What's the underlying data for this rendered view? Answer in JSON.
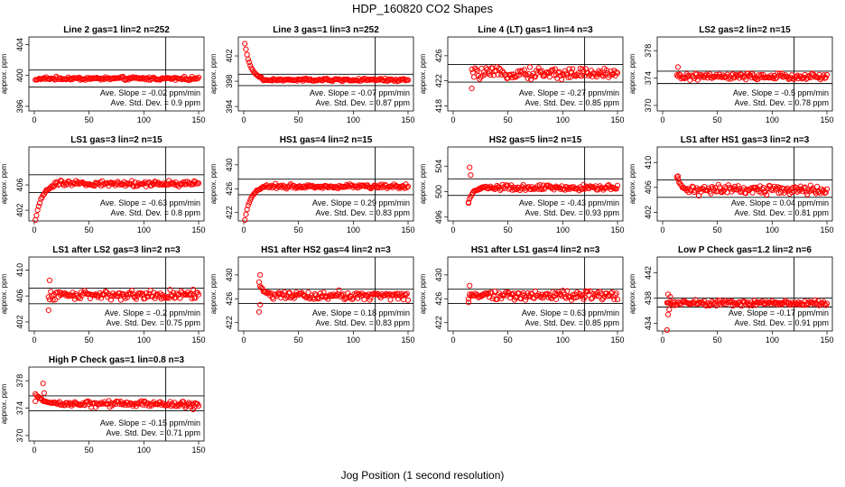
{
  "figure": {
    "title": "HDP_160820  CO2 Shapes",
    "xlabel": "Jog Position (1 second resolution)",
    "colors": {
      "points": "#ff0000",
      "lines": "#000000"
    }
  },
  "chart_data": [
    {
      "type": "scatter",
      "title": "Line 2 gas=1 lin=2 n=252",
      "ylabel": "approx. ppm",
      "xlim": [
        0,
        150
      ],
      "ylim": [
        395.4,
        405.0
      ],
      "yticks": [
        396,
        400,
        404
      ],
      "xticks": [
        0,
        50,
        100,
        150
      ],
      "hlines": [
        400.7,
        398.5
      ],
      "vline": 120,
      "x_start": 1,
      "n": 150,
      "base": 399.6,
      "noise": 0.15,
      "settle": {
        "from": 399.4,
        "len": 8
      },
      "outliers": [],
      "slope_text": "Ave. Slope =  -0.02  ppm/min",
      "sd_text": "Ave. Std. Dev. =  0.9  ppm"
    },
    {
      "type": "scatter",
      "title": "Line 3 gas=1 lin=3 n=252",
      "ylabel": "approx. ppm",
      "xlim": [
        0,
        150
      ],
      "ylim": [
        393.3,
        405.0
      ],
      "yticks": [
        394,
        398,
        402
      ],
      "xticks": [
        0,
        50,
        100,
        150
      ],
      "hlines": [
        399.1,
        397.3
      ],
      "vline": 120,
      "x_start": 1,
      "n": 150,
      "base": 398.2,
      "noise": 0.15,
      "settle": {
        "from": 404.0,
        "len": 16
      },
      "outliers": [],
      "slope_text": "Ave. Slope =  -0.07  ppm/min",
      "sd_text": "Ave. Std. Dev. =  0.87  ppm"
    },
    {
      "type": "scatter",
      "title": "Line 4 (LT) gas=1 lin=4 n=3",
      "ylabel": "approx. ppm",
      "xlim": [
        0,
        150
      ],
      "ylim": [
        417.2,
        429.0
      ],
      "yticks": [
        418,
        422,
        426
      ],
      "xticks": [
        0,
        50,
        100,
        150
      ],
      "hlines": [
        424.6,
        421.8
      ],
      "vline": 120,
      "x_start": 17,
      "n": 134,
      "base": 423.2,
      "noise": 0.6,
      "settle": null,
      "outliers": [
        [
          17,
          420.8
        ]
      ],
      "slope_text": "Ave. Slope =  -0.27  ppm/min",
      "sd_text": "Ave. Std. Dev. =  0.85  ppm"
    },
    {
      "type": "scatter",
      "title": "LS2 gas=2 lin=2 n=15",
      "ylabel": "approx. ppm",
      "xlim": [
        0,
        150
      ],
      "ylim": [
        369.2,
        380.0
      ],
      "yticks": [
        370,
        374,
        378
      ],
      "xticks": [
        0,
        50,
        100,
        150
      ],
      "hlines": [
        375.0,
        373.2
      ],
      "vline": 120,
      "x_start": 13,
      "n": 138,
      "base": 374.2,
      "noise": 0.3,
      "settle": null,
      "outliers": [
        [
          14,
          375.6
        ]
      ],
      "slope_text": "Ave. Slope =  -0.5  ppm/min",
      "sd_text": "Ave. Std. Dev. =  0.78  ppm"
    },
    {
      "type": "scatter",
      "title": "LS1 gas=3 lin=2 n=15",
      "ylabel": "approx. ppm",
      "xlim": [
        0,
        150
      ],
      "ylim": [
        400.3,
        412.0
      ],
      "yticks": [
        402,
        406
      ],
      "xticks": [
        0,
        50,
        100,
        150
      ],
      "hlines": [
        407.6,
        404.8
      ],
      "vline": 120,
      "x_start": 1,
      "n": 150,
      "base": 406.2,
      "noise": 0.3,
      "settle": {
        "from": 400.3,
        "len": 18
      },
      "outliers": [],
      "slope_text": "Ave. Slope =  -0.63  ppm/min",
      "sd_text": "Ave. Std. Dev. =  0.8  ppm"
    },
    {
      "type": "scatter",
      "title": "HS1 gas=4 lin=2 n=15",
      "ylabel": "approx. ppm",
      "xlim": [
        0,
        150
      ],
      "ylim": [
        420.6,
        433.0
      ],
      "yticks": [
        422,
        426,
        430
      ],
      "xticks": [
        0,
        50,
        100,
        150
      ],
      "hlines": [
        427.6,
        425.0
      ],
      "vline": 120,
      "x_start": 1,
      "n": 150,
      "base": 426.4,
      "noise": 0.25,
      "settle": {
        "from": 420.6,
        "len": 16
      },
      "outliers": [],
      "slope_text": "Ave. Slope =  0.29  ppm/min",
      "sd_text": "Ave. Std. Dev. =  0.83  ppm"
    },
    {
      "type": "scatter",
      "title": "HS2 gas=5 lin=2 n=15",
      "ylabel": "approx. ppm",
      "xlim": [
        0,
        150
      ],
      "ylim": [
        495.4,
        507.0
      ],
      "yticks": [
        496,
        500,
        504
      ],
      "xticks": [
        0,
        50,
        100,
        150
      ],
      "hlines": [
        502.0,
        499.4
      ],
      "vline": 120,
      "x_start": 14,
      "n": 137,
      "base": 500.6,
      "noise": 0.3,
      "settle": {
        "from": 498.4,
        "len": 12
      },
      "outliers": [
        [
          15,
          503.8
        ],
        [
          16,
          502.6
        ],
        [
          14,
          498.2
        ]
      ],
      "slope_text": "Ave. Slope =  -0.43  ppm/min",
      "sd_text": "Ave. Std. Dev. =  0.93  ppm"
    },
    {
      "type": "scatter",
      "title": "LS1 after HS1 gas=3 lin=2 n=3",
      "ylabel": "approx. ppm",
      "xlim": [
        0,
        150
      ],
      "ylim": [
        400.6,
        412.5
      ],
      "yticks": [
        402,
        406,
        410
      ],
      "xticks": [
        0,
        50,
        100,
        150
      ],
      "hlines": [
        407.2,
        404.4
      ],
      "vline": 120,
      "x_start": 13,
      "n": 138,
      "base": 405.6,
      "noise": 0.55,
      "settle": {
        "from": 407.6,
        "len": 10
      },
      "outliers": [
        [
          14,
          407.8
        ]
      ],
      "slope_text": "Ave. Slope =  0.04  ppm/min",
      "sd_text": "Ave. Std. Dev. =  0.81  ppm"
    },
    {
      "type": "scatter",
      "title": "LS1 after LS2 gas=3 lin=2 n=3",
      "ylabel": "approx. ppm",
      "xlim": [
        0,
        150
      ],
      "ylim": [
        400.6,
        412.0
      ],
      "yticks": [
        402,
        406,
        410
      ],
      "xticks": [
        0,
        50,
        100,
        150
      ],
      "hlines": [
        407.2,
        404.8
      ],
      "vline": 120,
      "x_start": 13,
      "n": 138,
      "base": 406.2,
      "noise": 0.5,
      "settle": null,
      "outliers": [
        [
          14,
          408.4
        ],
        [
          13,
          403.8
        ]
      ],
      "slope_text": "Ave. Slope =  -0.2  ppm/min",
      "sd_text": "Ave. Std. Dev. =  0.75  ppm"
    },
    {
      "type": "scatter",
      "title": "HS1 after HS2 gas=4 lin=2 n=3",
      "ylabel": "approx. ppm",
      "xlim": [
        0,
        150
      ],
      "ylim": [
        420.6,
        433.0
      ],
      "yticks": [
        422,
        426,
        430
      ],
      "xticks": [
        0,
        50,
        100,
        150
      ],
      "hlines": [
        427.6,
        425.2
      ],
      "vline": 120,
      "x_start": 14,
      "n": 137,
      "base": 426.6,
      "noise": 0.5,
      "settle": {
        "from": 428.8,
        "len": 12
      },
      "outliers": [
        [
          15,
          430.0
        ],
        [
          14,
          423.8
        ],
        [
          15,
          425.0
        ]
      ],
      "slope_text": "Ave. Slope =  0.18  ppm/min",
      "sd_text": "Ave. Std. Dev. =  0.83  ppm"
    },
    {
      "type": "scatter",
      "title": "HS1 after LS1 gas=4 lin=2 n=3",
      "ylabel": "approx. ppm",
      "xlim": [
        0,
        150
      ],
      "ylim": [
        420.6,
        433.0
      ],
      "yticks": [
        422,
        426,
        430
      ],
      "xticks": [
        0,
        50,
        100,
        150
      ],
      "hlines": [
        427.6,
        425.2
      ],
      "vline": 120,
      "x_start": 14,
      "n": 137,
      "base": 426.6,
      "noise": 0.5,
      "settle": null,
      "outliers": [
        [
          15,
          428.2
        ],
        [
          14,
          425.4
        ]
      ],
      "slope_text": "Ave. Slope =  0.63  ppm/min",
      "sd_text": "Ave. Std. Dev. =  0.85  ppm"
    },
    {
      "type": "scatter",
      "title": "Low P Check gas=1.2 lin=2 n=6",
      "ylabel": "approx. ppm",
      "xlim": [
        0,
        150
      ],
      "ylim": [
        432.8,
        444.5
      ],
      "yticks": [
        434,
        438,
        442
      ],
      "xticks": [
        0,
        50,
        100,
        150
      ],
      "hlines": [
        438.0,
        436.6
      ],
      "vline": 120,
      "x_start": 4,
      "n": 147,
      "base": 437.2,
      "noise": 0.3,
      "settle": null,
      "outliers": [
        [
          4,
          432.8
        ],
        [
          5,
          435.4
        ],
        [
          6,
          436.2
        ],
        [
          5,
          438.6
        ],
        [
          7,
          438.2
        ]
      ],
      "slope_text": "Ave. Slope =  -0.17  ppm/min",
      "sd_text": "Ave. Std. Dev. =  0.91  ppm"
    },
    {
      "type": "scatter",
      "title": "High P Check gas=1 lin=0.8 n=3",
      "ylabel": "approx. ppm",
      "xlim": [
        0,
        150
      ],
      "ylim": [
        369.2,
        380.0
      ],
      "yticks": [
        370,
        374,
        378
      ],
      "xticks": [
        0,
        50,
        100,
        150
      ],
      "hlines": [
        375.8,
        373.6
      ],
      "vline": 120,
      "x_start": 1,
      "n": 150,
      "base": 374.6,
      "noise": 0.3,
      "settle": {
        "from": 376.0,
        "len": 22
      },
      "outliers": [
        [
          8,
          377.6
        ],
        [
          9,
          376.2
        ],
        [
          1,
          375.0
        ],
        [
          145,
          373.8
        ]
      ],
      "slope_text": "Ave. Slope =  -0.15  ppm/min",
      "sd_text": "Ave. Std. Dev. =  0.71  ppm"
    }
  ]
}
